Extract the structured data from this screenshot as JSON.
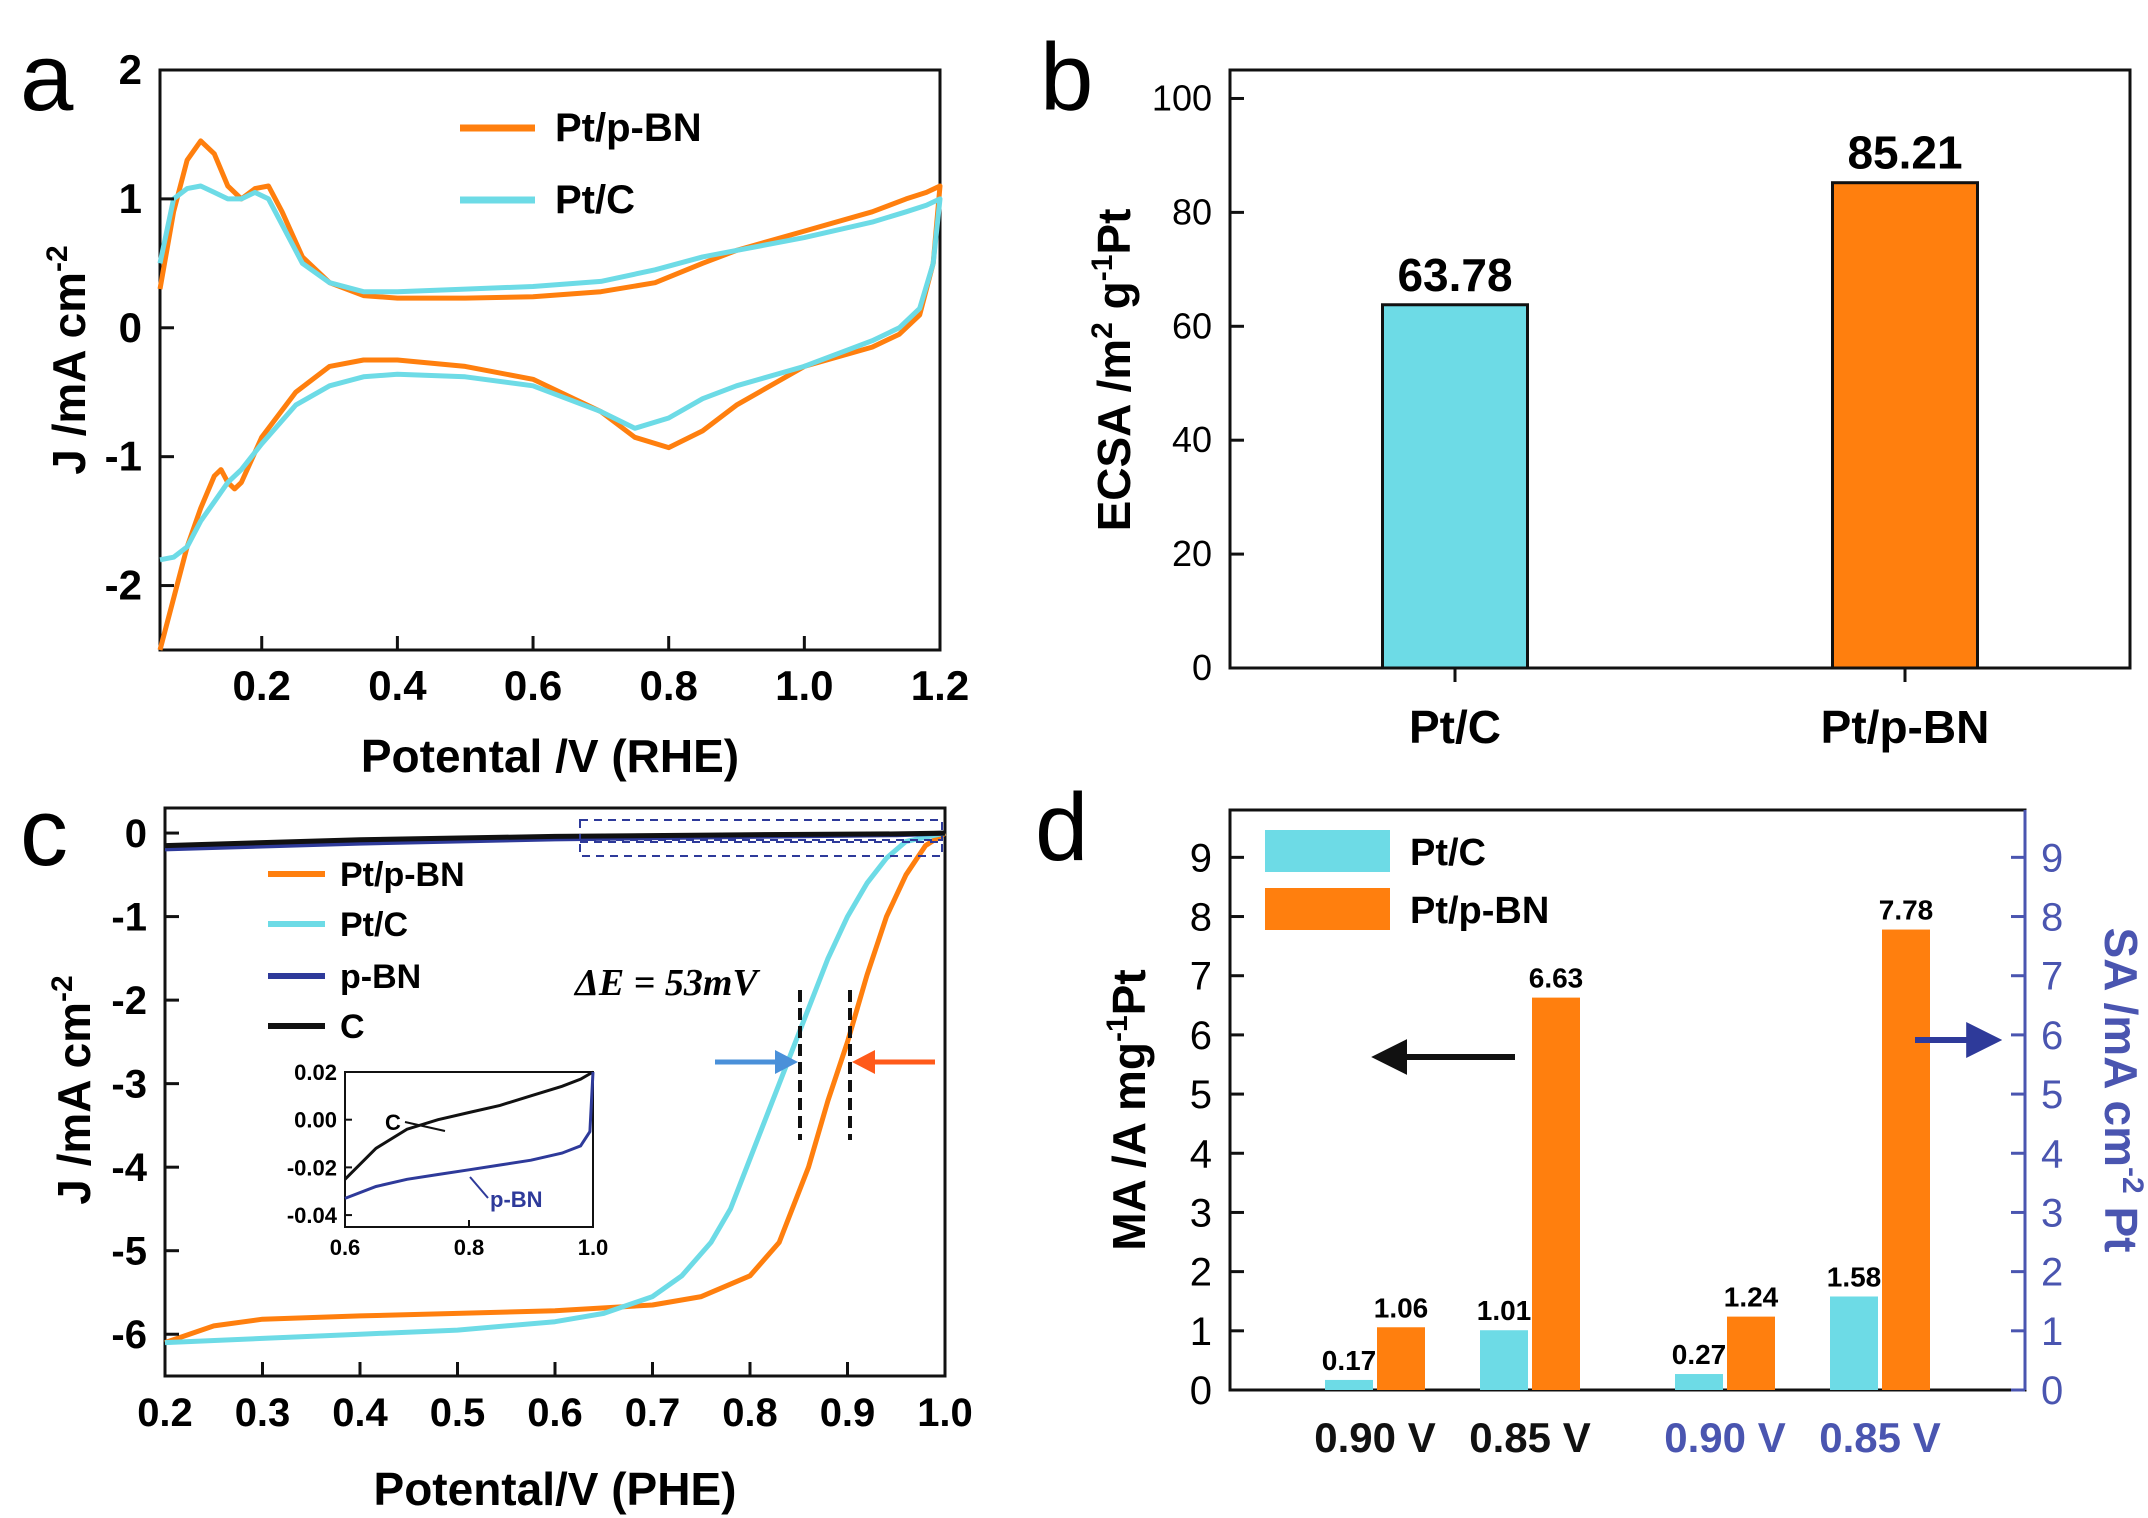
{
  "colors": {
    "orange": "#ff7f0e",
    "cyan": "#6ddbe6",
    "navy": "#2e3a9a",
    "black": "#111111",
    "axisBlue": "#4a55b0"
  },
  "chart_data": [
    {
      "panel": "a",
      "type": "line",
      "xlabel": "Potental /V (RHE)",
      "ylabel": "J /mA cm",
      "ylabel_sup": "-2",
      "xlim": [
        0.05,
        1.2
      ],
      "ylim": [
        -2.5,
        2.0
      ],
      "xticks": [
        "0.2",
        "0.4",
        "0.6",
        "0.8",
        "1.0",
        "1.2"
      ],
      "yticks": [
        "2",
        "1",
        "0",
        "-1",
        "-2"
      ],
      "legend": [
        "Pt/p-BN",
        "Pt/C"
      ],
      "series": [
        {
          "name": "Pt/p-BN",
          "color": "#ff7f0e",
          "x": [
            0.05,
            0.07,
            0.09,
            0.11,
            0.13,
            0.15,
            0.17,
            0.19,
            0.21,
            0.23,
            0.26,
            0.3,
            0.35,
            0.4,
            0.5,
            0.6,
            0.7,
            0.78,
            0.85,
            0.9,
            1.0,
            1.1,
            1.15,
            1.18,
            1.2,
            1.19,
            1.17,
            1.14,
            1.1,
            1.0,
            0.9,
            0.85,
            0.8,
            0.75,
            0.7,
            0.6,
            0.5,
            0.4,
            0.35,
            0.3,
            0.25,
            0.2,
            0.17,
            0.16,
            0.15,
            0.14,
            0.13,
            0.11,
            0.09,
            0.07,
            0.05
          ],
          "y": [
            0.3,
            0.9,
            1.3,
            1.45,
            1.35,
            1.1,
            1.0,
            1.08,
            1.1,
            0.9,
            0.55,
            0.35,
            0.25,
            0.23,
            0.23,
            0.24,
            0.28,
            0.35,
            0.5,
            0.6,
            0.75,
            0.9,
            1.0,
            1.05,
            1.1,
            0.5,
            0.1,
            -0.05,
            -0.15,
            -0.3,
            -0.6,
            -0.8,
            -0.93,
            -0.85,
            -0.65,
            -0.4,
            -0.3,
            -0.25,
            -0.25,
            -0.3,
            -0.5,
            -0.85,
            -1.2,
            -1.25,
            -1.2,
            -1.1,
            -1.15,
            -1.4,
            -1.7,
            -2.1,
            -2.5
          ]
        },
        {
          "name": "Pt/C",
          "color": "#6ddbe6",
          "x": [
            0.05,
            0.07,
            0.09,
            0.11,
            0.13,
            0.15,
            0.17,
            0.19,
            0.21,
            0.23,
            0.26,
            0.3,
            0.35,
            0.4,
            0.5,
            0.6,
            0.7,
            0.78,
            0.85,
            0.9,
            1.0,
            1.1,
            1.15,
            1.18,
            1.2,
            1.19,
            1.17,
            1.14,
            1.1,
            1.0,
            0.9,
            0.85,
            0.8,
            0.75,
            0.7,
            0.6,
            0.5,
            0.4,
            0.35,
            0.3,
            0.25,
            0.2,
            0.17,
            0.15,
            0.13,
            0.11,
            0.09,
            0.07,
            0.05
          ],
          "y": [
            0.5,
            1.0,
            1.08,
            1.1,
            1.05,
            1.0,
            1.0,
            1.05,
            1.0,
            0.8,
            0.5,
            0.35,
            0.28,
            0.28,
            0.3,
            0.32,
            0.36,
            0.45,
            0.55,
            0.6,
            0.7,
            0.82,
            0.9,
            0.95,
            1.0,
            0.5,
            0.15,
            0.0,
            -0.1,
            -0.3,
            -0.45,
            -0.55,
            -0.7,
            -0.78,
            -0.65,
            -0.45,
            -0.38,
            -0.36,
            -0.38,
            -0.45,
            -0.6,
            -0.9,
            -1.1,
            -1.2,
            -1.35,
            -1.5,
            -1.7,
            -1.78,
            -1.8
          ]
        }
      ]
    },
    {
      "panel": "b",
      "type": "bar",
      "ylabel": "ECSA /m",
      "ylabel_sup1": "2",
      "ylabel_mid": " g",
      "ylabel_sup2": "-1",
      "ylabel_end": "Pt",
      "categories": [
        "Pt/C",
        "Pt/p-BN"
      ],
      "values": [
        63.78,
        85.21
      ],
      "labels": [
        "63.78",
        "85.21"
      ],
      "colors": [
        "#6ddbe6",
        "#ff7f0e"
      ],
      "ylim": [
        0,
        105
      ],
      "yticks": [
        "0",
        "20",
        "40",
        "60",
        "80",
        "100"
      ]
    },
    {
      "panel": "c",
      "type": "line",
      "xlabel": "Potental/V (PHE)",
      "ylabel": "J /mA cm",
      "ylabel_sup": "-2",
      "xlim": [
        0.2,
        1.0
      ],
      "ylim": [
        -6.5,
        0.3
      ],
      "xticks": [
        "0.2",
        "0.3",
        "0.4",
        "0.5",
        "0.6",
        "0.7",
        "0.8",
        "0.9",
        "1.0"
      ],
      "yticks": [
        "0",
        "-1",
        "-2",
        "-3",
        "-4",
        "-5",
        "-6"
      ],
      "legend": [
        "Pt/p-BN",
        "Pt/C",
        "p-BN",
        "C"
      ],
      "annotation": "ΔE = 53mV",
      "series": [
        {
          "name": "Pt/p-BN",
          "color": "#ff7f0e",
          "x": [
            0.2,
            0.25,
            0.3,
            0.4,
            0.5,
            0.6,
            0.7,
            0.75,
            0.8,
            0.83,
            0.86,
            0.88,
            0.9,
            0.92,
            0.94,
            0.96,
            0.98,
            1.0
          ],
          "y": [
            -6.1,
            -5.9,
            -5.82,
            -5.78,
            -5.75,
            -5.72,
            -5.65,
            -5.55,
            -5.3,
            -4.9,
            -4.0,
            -3.2,
            -2.5,
            -1.7,
            -1.0,
            -0.5,
            -0.15,
            0
          ]
        },
        {
          "name": "Pt/C",
          "color": "#6ddbe6",
          "x": [
            0.2,
            0.3,
            0.4,
            0.5,
            0.6,
            0.65,
            0.7,
            0.73,
            0.76,
            0.78,
            0.8,
            0.82,
            0.84,
            0.86,
            0.88,
            0.9,
            0.92,
            0.94,
            0.96,
            1.0
          ],
          "y": [
            -6.1,
            -6.05,
            -6.0,
            -5.95,
            -5.85,
            -5.75,
            -5.55,
            -5.3,
            -4.9,
            -4.5,
            -3.9,
            -3.3,
            -2.7,
            -2.1,
            -1.5,
            -1.0,
            -0.6,
            -0.3,
            -0.1,
            0
          ]
        },
        {
          "name": "p-BN",
          "color": "#2e3a9a",
          "x": [
            0.2,
            0.4,
            0.6,
            0.8,
            0.95,
            1.0
          ],
          "y": [
            -0.19,
            -0.12,
            -0.07,
            -0.04,
            -0.02,
            0.0
          ]
        },
        {
          "name": "C",
          "color": "#111111",
          "x": [
            0.2,
            0.4,
            0.6,
            0.8,
            0.95,
            1.0
          ],
          "y": [
            -0.15,
            -0.08,
            -0.04,
            -0.02,
            -0.01,
            0.0
          ]
        }
      ],
      "inset": {
        "xlim": [
          0.6,
          1.0
        ],
        "ylim": [
          -0.045,
          0.02
        ],
        "xticks": [
          "0.6",
          "0.8",
          "1.0"
        ],
        "yticks": [
          "0.02",
          "0.00",
          "-0.02",
          "-0.04"
        ],
        "labels": [
          "C",
          "p-BN"
        ],
        "series": [
          {
            "name": "C",
            "color": "#111111",
            "x": [
              0.6,
              0.65,
              0.7,
              0.75,
              0.8,
              0.85,
              0.9,
              0.95,
              0.98,
              1.0
            ],
            "y": [
              -0.025,
              -0.012,
              -0.004,
              0.0,
              0.003,
              0.006,
              0.01,
              0.014,
              0.017,
              0.02
            ]
          },
          {
            "name": "p-BN",
            "color": "#2e3a9a",
            "x": [
              0.6,
              0.65,
              0.7,
              0.75,
              0.8,
              0.85,
              0.9,
              0.95,
              0.98,
              0.995,
              1.0
            ],
            "y": [
              -0.033,
              -0.028,
              -0.025,
              -0.023,
              -0.021,
              -0.019,
              -0.017,
              -0.014,
              -0.011,
              -0.005,
              0.02
            ]
          }
        ]
      }
    },
    {
      "panel": "d",
      "type": "bar",
      "ylabel_left": "MA /A mg",
      "ylabel_left_sup": "-1",
      "ylabel_left_end": "Pt",
      "ylabel_right": "SA /mA cm",
      "ylabel_right_sup": "-2",
      "ylabel_right_end": " Pt",
      "ylim": [
        0,
        9.8
      ],
      "yticks": [
        "0",
        "1",
        "2",
        "3",
        "4",
        "5",
        "6",
        "7",
        "8",
        "9"
      ],
      "categories": [
        "0.90 V",
        "0.85 V",
        "0.90 V",
        "0.85 V"
      ],
      "category_axis": [
        "left",
        "left",
        "right",
        "right"
      ],
      "series": [
        {
          "name": "Pt/C",
          "color": "#6ddbe6",
          "values": [
            0.17,
            1.01,
            0.27,
            1.58
          ],
          "labels": [
            "0.17",
            "1.01",
            "0.27",
            "1.58"
          ]
        },
        {
          "name": "Pt/p-BN",
          "color": "#ff7f0e",
          "values": [
            1.06,
            6.63,
            1.24,
            7.78
          ],
          "labels": [
            "1.06",
            "6.63",
            "1.24",
            "7.78"
          ]
        }
      ],
      "legend": [
        "Pt/C",
        "Pt/p-BN"
      ]
    }
  ],
  "panel_labels": [
    "a",
    "b",
    "c",
    "d"
  ]
}
